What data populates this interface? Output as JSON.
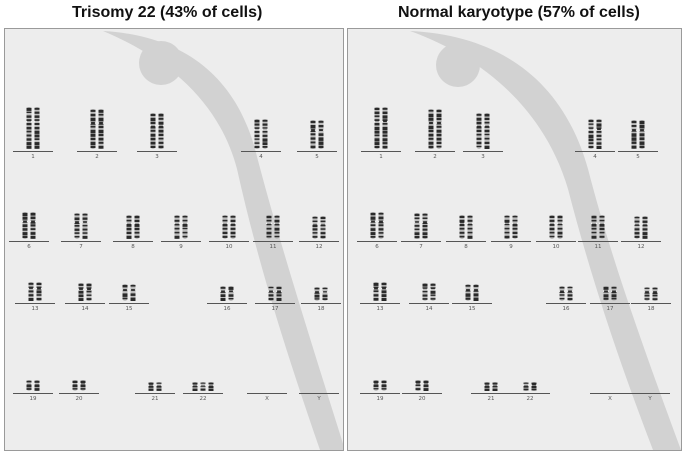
{
  "left_panel": {
    "title": "Trisomy 22 (43% of cells)",
    "chromosomes": [
      {
        "label": "1",
        "copies": 2
      },
      {
        "label": "2",
        "copies": 2
      },
      {
        "label": "3",
        "copies": 2
      },
      {
        "label": "4",
        "copies": 2
      },
      {
        "label": "5",
        "copies": 2
      },
      {
        "label": "6",
        "copies": 2
      },
      {
        "label": "7",
        "copies": 2
      },
      {
        "label": "8",
        "copies": 2
      },
      {
        "label": "9",
        "copies": 2
      },
      {
        "label": "10",
        "copies": 2
      },
      {
        "label": "11",
        "copies": 2
      },
      {
        "label": "12",
        "copies": 2
      },
      {
        "label": "13",
        "copies": 2
      },
      {
        "label": "14",
        "copies": 2
      },
      {
        "label": "15",
        "copies": 2
      },
      {
        "label": "16",
        "copies": 2
      },
      {
        "label": "17",
        "copies": 2
      },
      {
        "label": "18",
        "copies": 2
      },
      {
        "label": "19",
        "copies": 2
      },
      {
        "label": "20",
        "copies": 2
      },
      {
        "label": "21",
        "copies": 2
      },
      {
        "label": "22",
        "copies": 3
      },
      {
        "label": "X",
        "copies": 0
      },
      {
        "label": "Y",
        "copies": 0
      }
    ]
  },
  "right_panel": {
    "title": "Normal karyotype (57% of cells)",
    "chromosomes": [
      {
        "label": "1",
        "copies": 2
      },
      {
        "label": "2",
        "copies": 2
      },
      {
        "label": "3",
        "copies": 2
      },
      {
        "label": "4",
        "copies": 2
      },
      {
        "label": "5",
        "copies": 2
      },
      {
        "label": "6",
        "copies": 2
      },
      {
        "label": "7",
        "copies": 2
      },
      {
        "label": "8",
        "copies": 2
      },
      {
        "label": "9",
        "copies": 2
      },
      {
        "label": "10",
        "copies": 2
      },
      {
        "label": "11",
        "copies": 2
      },
      {
        "label": "12",
        "copies": 2
      },
      {
        "label": "13",
        "copies": 2
      },
      {
        "label": "14",
        "copies": 2
      },
      {
        "label": "15",
        "copies": 2
      },
      {
        "label": "16",
        "copies": 2
      },
      {
        "label": "17",
        "copies": 2
      },
      {
        "label": "18",
        "copies": 2
      },
      {
        "label": "19",
        "copies": 2
      },
      {
        "label": "20",
        "copies": 2
      },
      {
        "label": "21",
        "copies": 2
      },
      {
        "label": "22",
        "copies": 2
      },
      {
        "label": "X",
        "copies": 0
      },
      {
        "label": "Y",
        "copies": 0
      }
    ]
  },
  "colors": {
    "band_dark": "#2a2a2a",
    "band_light": "#bdbdbd",
    "panel_bg": "#ededed",
    "swoosh": "#d2d2d2"
  }
}
